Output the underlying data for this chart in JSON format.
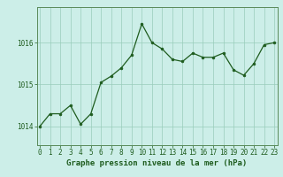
{
  "x": [
    0,
    1,
    2,
    3,
    4,
    5,
    6,
    7,
    8,
    9,
    10,
    11,
    12,
    13,
    14,
    15,
    16,
    17,
    18,
    19,
    20,
    21,
    22,
    23
  ],
  "y": [
    1014.0,
    1014.3,
    1014.3,
    1014.5,
    1014.05,
    1014.3,
    1015.05,
    1015.2,
    1015.4,
    1015.7,
    1016.45,
    1016.0,
    1015.85,
    1015.6,
    1015.55,
    1015.75,
    1015.65,
    1015.65,
    1015.75,
    1015.35,
    1015.22,
    1015.5,
    1015.95,
    1016.0
  ],
  "line_color": "#1e5c1e",
  "marker_color": "#1e5c1e",
  "bg_color": "#cceee8",
  "grid_color": "#99ccbb",
  "axis_color": "#1e5c1e",
  "spine_color": "#5a8a5a",
  "xlabel": "Graphe pression niveau de la mer (hPa)",
  "yticks": [
    1014,
    1015,
    1016
  ],
  "xticks": [
    0,
    1,
    2,
    3,
    4,
    5,
    6,
    7,
    8,
    9,
    10,
    11,
    12,
    13,
    14,
    15,
    16,
    17,
    18,
    19,
    20,
    21,
    22,
    23
  ],
  "ylim": [
    1013.55,
    1016.85
  ],
  "xlim": [
    -0.3,
    23.3
  ],
  "tick_fontsize": 5.5,
  "label_fontsize": 6.5
}
